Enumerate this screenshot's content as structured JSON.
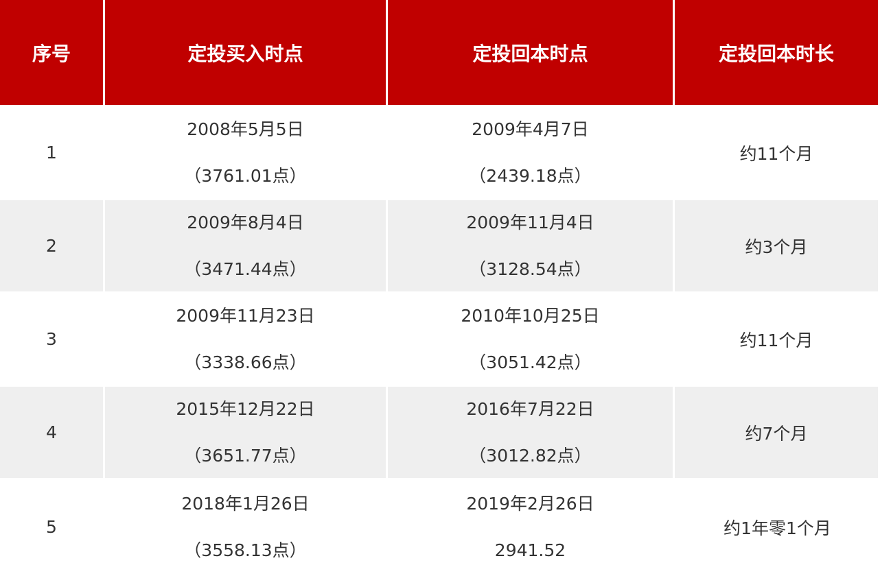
{
  "table": {
    "headers": [
      "序号",
      "定投买入时点",
      "定投回本时点",
      "定投回本时长"
    ],
    "rows": [
      {
        "index": "1",
        "buy_date": "2008年5月5日",
        "buy_point": "（3761.01点）",
        "recover_date": "2009年4月7日",
        "recover_point": "（2439.18点）",
        "duration": "约11个月"
      },
      {
        "index": "2",
        "buy_date": "2009年8月4日",
        "buy_point": "（3471.44点）",
        "recover_date": "2009年11月4日",
        "recover_point": "（3128.54点）",
        "duration": "约3个月"
      },
      {
        "index": "3",
        "buy_date": "2009年11月23日",
        "buy_point": "（3338.66点）",
        "recover_date": "2010年10月25日",
        "recover_point": "（3051.42点）",
        "duration": "约11个月"
      },
      {
        "index": "4",
        "buy_date": "2015年12月22日",
        "buy_point": "（3651.77点）",
        "recover_date": "2016年7月22日",
        "recover_point": "（3012.82点）",
        "duration": "约7个月"
      },
      {
        "index": "5",
        "buy_date": "2018年1月26日",
        "buy_point": "（3558.13点）",
        "recover_date": "2019年2月26日",
        "recover_point": "2941.52",
        "duration": "约1年零1个月"
      }
    ]
  },
  "colors": {
    "header_bg": "#c00000",
    "header_text": "#ffffff",
    "row_alt_bg": "#efefef"
  }
}
